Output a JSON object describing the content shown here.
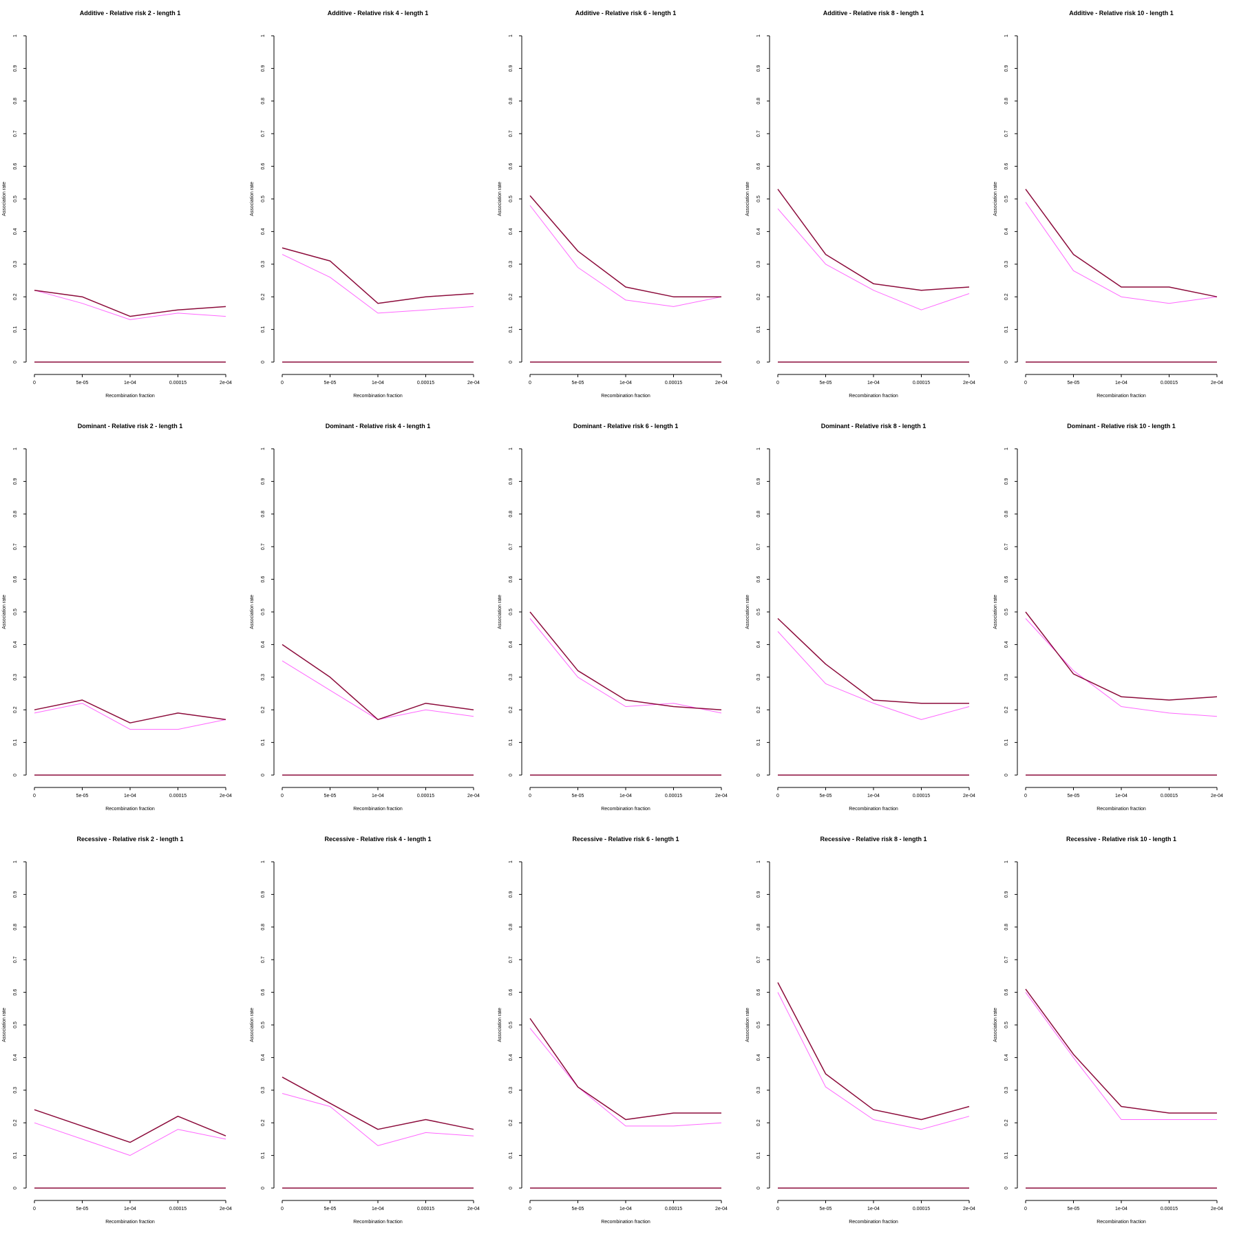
{
  "colors": {
    "background": "#ffffff",
    "axis": "#000000",
    "series_dark": "#8b0a3a",
    "series_light": "#ff66ff"
  },
  "chart_data": [
    {
      "type": "line",
      "title": "Additive  - Relative risk 2 - length 1",
      "xlabel": "Recombination fraction",
      "ylabel": "Association rate",
      "categories": [
        "0",
        "5e-05",
        "1e-04",
        "0.00015",
        "2e-04"
      ],
      "ylim": [
        0,
        1
      ],
      "yticks": [
        "0",
        "0.1",
        "0.2",
        "0.3",
        "0.4",
        "0.5",
        "0.6",
        "0.7",
        "0.8",
        "0.9",
        "1"
      ],
      "grid": false,
      "series": [
        {
          "color": "#8b0a3a",
          "values": [
            0.22,
            0.2,
            0.14,
            0.16,
            0.17
          ]
        },
        {
          "color": "#ff66ff",
          "values": [
            0.22,
            0.18,
            0.13,
            0.15,
            0.14
          ]
        },
        {
          "color": "#8b0a3a",
          "values": [
            0,
            0,
            0,
            0,
            0
          ]
        }
      ]
    },
    {
      "type": "line",
      "title": "Additive  - Relative risk 4 - length 1",
      "xlabel": "Recombination fraction",
      "ylabel": "Association rate",
      "categories": [
        "0",
        "5e-05",
        "1e-04",
        "0.00015",
        "2e-04"
      ],
      "ylim": [
        0,
        1
      ],
      "yticks": [
        "0",
        "0.1",
        "0.2",
        "0.3",
        "0.4",
        "0.5",
        "0.6",
        "0.7",
        "0.8",
        "0.9",
        "1"
      ],
      "grid": false,
      "series": [
        {
          "color": "#8b0a3a",
          "values": [
            0.35,
            0.31,
            0.18,
            0.2,
            0.21
          ]
        },
        {
          "color": "#ff66ff",
          "values": [
            0.33,
            0.26,
            0.15,
            0.16,
            0.17
          ]
        },
        {
          "color": "#8b0a3a",
          "values": [
            0,
            0,
            0,
            0,
            0
          ]
        }
      ]
    },
    {
      "type": "line",
      "title": "Additive  - Relative risk 6 - length 1",
      "xlabel": "Recombination fraction",
      "ylabel": "Association rate",
      "categories": [
        "0",
        "5e-05",
        "1e-04",
        "0.00015",
        "2e-04"
      ],
      "ylim": [
        0,
        1
      ],
      "yticks": [
        "0",
        "0.1",
        "0.2",
        "0.3",
        "0.4",
        "0.5",
        "0.6",
        "0.7",
        "0.8",
        "0.9",
        "1"
      ],
      "grid": false,
      "series": [
        {
          "color": "#8b0a3a",
          "values": [
            0.51,
            0.34,
            0.23,
            0.2,
            0.2
          ]
        },
        {
          "color": "#ff66ff",
          "values": [
            0.48,
            0.29,
            0.19,
            0.17,
            0.2
          ]
        },
        {
          "color": "#8b0a3a",
          "values": [
            0,
            0,
            0,
            0,
            0
          ]
        }
      ]
    },
    {
      "type": "line",
      "title": "Additive  - Relative risk 8 - length 1",
      "xlabel": "Recombination fraction",
      "ylabel": "Association rate",
      "categories": [
        "0",
        "5e-05",
        "1e-04",
        "0.00015",
        "2e-04"
      ],
      "ylim": [
        0,
        1
      ],
      "yticks": [
        "0",
        "0.1",
        "0.2",
        "0.3",
        "0.4",
        "0.5",
        "0.6",
        "0.7",
        "0.8",
        "0.9",
        "1"
      ],
      "grid": false,
      "series": [
        {
          "color": "#8b0a3a",
          "values": [
            0.53,
            0.33,
            0.24,
            0.22,
            0.23
          ]
        },
        {
          "color": "#ff66ff",
          "values": [
            0.47,
            0.3,
            0.22,
            0.16,
            0.21
          ]
        },
        {
          "color": "#8b0a3a",
          "values": [
            0,
            0,
            0,
            0,
            0
          ]
        }
      ]
    },
    {
      "type": "line",
      "title": "Additive  - Relative risk 10 - length 1",
      "xlabel": "Recombination fraction",
      "ylabel": "Association rate",
      "categories": [
        "0",
        "5e-05",
        "1e-04",
        "0.00015",
        "2e-04"
      ],
      "ylim": [
        0,
        1
      ],
      "yticks": [
        "0",
        "0.1",
        "0.2",
        "0.3",
        "0.4",
        "0.5",
        "0.6",
        "0.7",
        "0.8",
        "0.9",
        "1"
      ],
      "grid": false,
      "series": [
        {
          "color": "#8b0a3a",
          "values": [
            0.53,
            0.33,
            0.23,
            0.23,
            0.2
          ]
        },
        {
          "color": "#ff66ff",
          "values": [
            0.49,
            0.28,
            0.2,
            0.18,
            0.2
          ]
        },
        {
          "color": "#8b0a3a",
          "values": [
            0,
            0,
            0,
            0,
            0
          ]
        }
      ]
    },
    {
      "type": "line",
      "title": "Dominant  - Relative risk 2 - length 1",
      "xlabel": "Recombination fraction",
      "ylabel": "Association rate",
      "categories": [
        "0",
        "5e-05",
        "1e-04",
        "0.00015",
        "2e-04"
      ],
      "ylim": [
        0,
        1
      ],
      "yticks": [
        "0",
        "0.1",
        "0.2",
        "0.3",
        "0.4",
        "0.5",
        "0.6",
        "0.7",
        "0.8",
        "0.9",
        "1"
      ],
      "grid": false,
      "series": [
        {
          "color": "#8b0a3a",
          "values": [
            0.2,
            0.23,
            0.16,
            0.19,
            0.17
          ]
        },
        {
          "color": "#ff66ff",
          "values": [
            0.19,
            0.22,
            0.14,
            0.14,
            0.17
          ]
        },
        {
          "color": "#8b0a3a",
          "values": [
            0,
            0,
            0,
            0,
            0
          ]
        }
      ]
    },
    {
      "type": "line",
      "title": "Dominant  - Relative risk 4 - length 1",
      "xlabel": "Recombination fraction",
      "ylabel": "Association rate",
      "categories": [
        "0",
        "5e-05",
        "1e-04",
        "0.00015",
        "2e-04"
      ],
      "ylim": [
        0,
        1
      ],
      "yticks": [
        "0",
        "0.1",
        "0.2",
        "0.3",
        "0.4",
        "0.5",
        "0.6",
        "0.7",
        "0.8",
        "0.9",
        "1"
      ],
      "grid": false,
      "series": [
        {
          "color": "#8b0a3a",
          "values": [
            0.4,
            0.3,
            0.17,
            0.22,
            0.2
          ]
        },
        {
          "color": "#ff66ff",
          "values": [
            0.35,
            0.26,
            0.17,
            0.2,
            0.18
          ]
        },
        {
          "color": "#8b0a3a",
          "values": [
            0,
            0,
            0,
            0,
            0
          ]
        }
      ]
    },
    {
      "type": "line",
      "title": "Dominant  - Relative risk 6 - length 1",
      "xlabel": "Recombination fraction",
      "ylabel": "Association rate",
      "categories": [
        "0",
        "5e-05",
        "1e-04",
        "0.00015",
        "2e-04"
      ],
      "ylim": [
        0,
        1
      ],
      "yticks": [
        "0",
        "0.1",
        "0.2",
        "0.3",
        "0.4",
        "0.5",
        "0.6",
        "0.7",
        "0.8",
        "0.9",
        "1"
      ],
      "grid": false,
      "series": [
        {
          "color": "#8b0a3a",
          "values": [
            0.5,
            0.32,
            0.23,
            0.21,
            0.2
          ]
        },
        {
          "color": "#ff66ff",
          "values": [
            0.48,
            0.3,
            0.21,
            0.22,
            0.19
          ]
        },
        {
          "color": "#8b0a3a",
          "values": [
            0,
            0,
            0,
            0,
            0
          ]
        }
      ]
    },
    {
      "type": "line",
      "title": "Dominant  - Relative risk 8 - length 1",
      "xlabel": "Recombination fraction",
      "ylabel": "Association rate",
      "categories": [
        "0",
        "5e-05",
        "1e-04",
        "0.00015",
        "2e-04"
      ],
      "ylim": [
        0,
        1
      ],
      "yticks": [
        "0",
        "0.1",
        "0.2",
        "0.3",
        "0.4",
        "0.5",
        "0.6",
        "0.7",
        "0.8",
        "0.9",
        "1"
      ],
      "grid": false,
      "series": [
        {
          "color": "#8b0a3a",
          "values": [
            0.48,
            0.34,
            0.23,
            0.22,
            0.22
          ]
        },
        {
          "color": "#ff66ff",
          "values": [
            0.44,
            0.28,
            0.22,
            0.17,
            0.21
          ]
        },
        {
          "color": "#8b0a3a",
          "values": [
            0,
            0,
            0,
            0,
            0
          ]
        }
      ]
    },
    {
      "type": "line",
      "title": "Dominant  - Relative risk 10 - length 1",
      "xlabel": "Recombination fraction",
      "ylabel": "Association rate",
      "categories": [
        "0",
        "5e-05",
        "1e-04",
        "0.00015",
        "2e-04"
      ],
      "ylim": [
        0,
        1
      ],
      "yticks": [
        "0",
        "0.1",
        "0.2",
        "0.3",
        "0.4",
        "0.5",
        "0.6",
        "0.7",
        "0.8",
        "0.9",
        "1"
      ],
      "grid": false,
      "series": [
        {
          "color": "#8b0a3a",
          "values": [
            0.5,
            0.31,
            0.24,
            0.23,
            0.24
          ]
        },
        {
          "color": "#ff66ff",
          "values": [
            0.48,
            0.32,
            0.21,
            0.19,
            0.18
          ]
        },
        {
          "color": "#8b0a3a",
          "values": [
            0,
            0,
            0,
            0,
            0
          ]
        }
      ]
    },
    {
      "type": "line",
      "title": "Recessive  - Relative risk 2 - length 1",
      "xlabel": "Recombination fraction",
      "ylabel": "Association rate",
      "categories": [
        "0",
        "5e-05",
        "1e-04",
        "0.00015",
        "2e-04"
      ],
      "ylim": [
        0,
        1
      ],
      "yticks": [
        "0",
        "0.1",
        "0.2",
        "0.3",
        "0.4",
        "0.5",
        "0.6",
        "0.7",
        "0.8",
        "0.9",
        "1"
      ],
      "grid": false,
      "series": [
        {
          "color": "#8b0a3a",
          "values": [
            0.24,
            0.19,
            0.14,
            0.22,
            0.16
          ]
        },
        {
          "color": "#ff66ff",
          "values": [
            0.2,
            0.15,
            0.1,
            0.18,
            0.15
          ]
        },
        {
          "color": "#8b0a3a",
          "values": [
            0,
            0,
            0,
            0,
            0
          ]
        }
      ]
    },
    {
      "type": "line",
      "title": "Recessive  - Relative risk 4 - length 1",
      "xlabel": "Recombination fraction",
      "ylabel": "Association rate",
      "categories": [
        "0",
        "5e-05",
        "1e-04",
        "0.00015",
        "2e-04"
      ],
      "ylim": [
        0,
        1
      ],
      "yticks": [
        "0",
        "0.1",
        "0.2",
        "0.3",
        "0.4",
        "0.5",
        "0.6",
        "0.7",
        "0.8",
        "0.9",
        "1"
      ],
      "grid": false,
      "series": [
        {
          "color": "#8b0a3a",
          "values": [
            0.34,
            0.26,
            0.18,
            0.21,
            0.18
          ]
        },
        {
          "color": "#ff66ff",
          "values": [
            0.29,
            0.25,
            0.13,
            0.17,
            0.16
          ]
        },
        {
          "color": "#8b0a3a",
          "values": [
            0,
            0,
            0,
            0,
            0
          ]
        }
      ]
    },
    {
      "type": "line",
      "title": "Recessive  - Relative risk 6 - length 1",
      "xlabel": "Recombination fraction",
      "ylabel": "Association rate",
      "categories": [
        "0",
        "5e-05",
        "1e-04",
        "0.00015",
        "2e-04"
      ],
      "ylim": [
        0,
        1
      ],
      "yticks": [
        "0",
        "0.1",
        "0.2",
        "0.3",
        "0.4",
        "0.5",
        "0.6",
        "0.7",
        "0.8",
        "0.9",
        "1"
      ],
      "grid": false,
      "series": [
        {
          "color": "#8b0a3a",
          "values": [
            0.52,
            0.31,
            0.21,
            0.23,
            0.23
          ]
        },
        {
          "color": "#ff66ff",
          "values": [
            0.49,
            0.31,
            0.19,
            0.19,
            0.2
          ]
        },
        {
          "color": "#8b0a3a",
          "values": [
            0,
            0,
            0,
            0,
            0
          ]
        }
      ]
    },
    {
      "type": "line",
      "title": "Recessive  - Relative risk 8 - length 1",
      "xlabel": "Recombination fraction",
      "ylabel": "Association rate",
      "categories": [
        "0",
        "5e-05",
        "1e-04",
        "0.00015",
        "2e-04"
      ],
      "ylim": [
        0,
        1
      ],
      "yticks": [
        "0",
        "0.1",
        "0.2",
        "0.3",
        "0.4",
        "0.5",
        "0.6",
        "0.7",
        "0.8",
        "0.9",
        "1"
      ],
      "grid": false,
      "series": [
        {
          "color": "#8b0a3a",
          "values": [
            0.63,
            0.35,
            0.24,
            0.21,
            0.25
          ]
        },
        {
          "color": "#ff66ff",
          "values": [
            0.6,
            0.31,
            0.21,
            0.18,
            0.22
          ]
        },
        {
          "color": "#8b0a3a",
          "values": [
            0,
            0,
            0,
            0,
            0
          ]
        }
      ]
    },
    {
      "type": "line",
      "title": "Recessive  - Relative risk 10 - length 1",
      "xlabel": "Recombination fraction",
      "ylabel": "Association rate",
      "categories": [
        "0",
        "5e-05",
        "1e-04",
        "0.00015",
        "2e-04"
      ],
      "ylim": [
        0,
        1
      ],
      "yticks": [
        "0",
        "0.1",
        "0.2",
        "0.3",
        "0.4",
        "0.5",
        "0.6",
        "0.7",
        "0.8",
        "0.9",
        "1"
      ],
      "grid": false,
      "series": [
        {
          "color": "#8b0a3a",
          "values": [
            0.61,
            0.41,
            0.25,
            0.23,
            0.23
          ]
        },
        {
          "color": "#ff66ff",
          "values": [
            0.6,
            0.4,
            0.21,
            0.21,
            0.21
          ]
        },
        {
          "color": "#8b0a3a",
          "values": [
            0,
            0,
            0,
            0,
            0
          ]
        }
      ]
    }
  ]
}
